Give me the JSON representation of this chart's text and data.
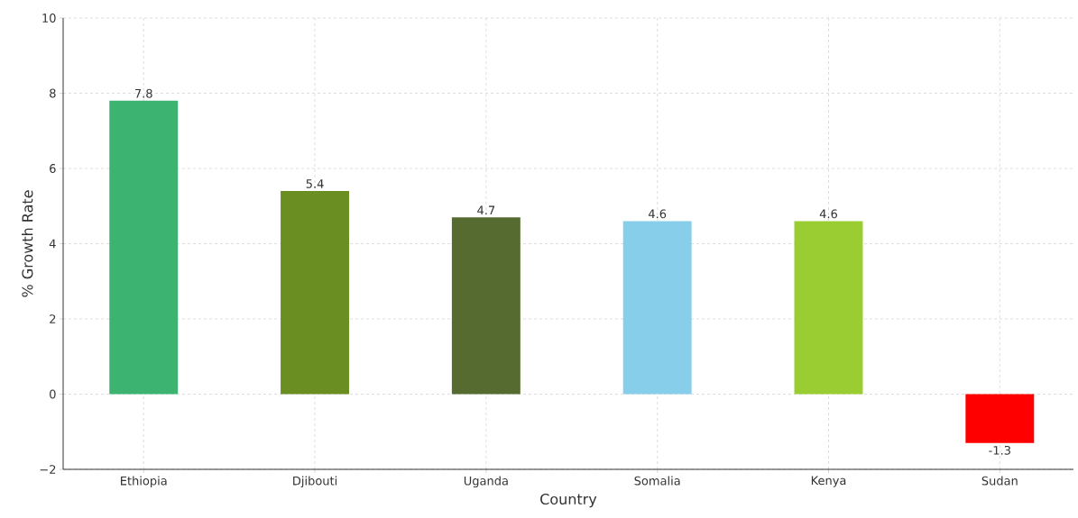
{
  "chart_data": {
    "type": "bar",
    "xlabel": "Country",
    "ylabel": "% Growth Rate",
    "categories": [
      "Ethiopia",
      "Djibouti",
      "Uganda",
      "Somalia",
      "Kenya",
      "Sudan"
    ],
    "values": [
      7.8,
      5.4,
      4.7,
      4.6,
      4.6,
      -1.3
    ],
    "colors": [
      "#3cb371",
      "#6b8e23",
      "#556b2f",
      "#87ceeb",
      "#9acd32",
      "#ff0000"
    ],
    "ylim": [
      -2,
      10
    ],
    "yticks": [
      {
        "value": -2,
        "label": "−2"
      },
      0,
      2,
      4,
      6,
      8,
      10
    ],
    "grid": true,
    "data_labels": true
  }
}
